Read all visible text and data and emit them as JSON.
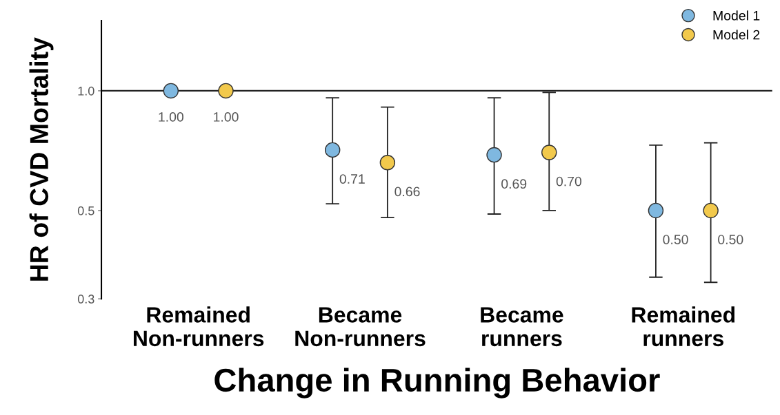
{
  "chart_data": {
    "type": "scatter",
    "categories": [
      "Remained\nNon-runners",
      "Became\nNon-runners",
      "Became\nrunners",
      "Remained\nrunners"
    ],
    "xlabel": "Change in Running Behavior",
    "ylabel": "HR of CVD Mortality",
    "series": [
      {
        "name": "Model 1",
        "color": "#7fb8e0",
        "values": [
          1.0,
          0.71,
          0.69,
          0.5
        ],
        "errors": [
          null,
          [
            0.52,
            0.96
          ],
          [
            0.49,
            0.96
          ],
          [
            0.34,
            0.73
          ]
        ],
        "value_labels": [
          "1.00",
          "0.71",
          "0.69",
          "0.50"
        ]
      },
      {
        "name": "Model 2",
        "color": "#f2c94c",
        "values": [
          1.0,
          0.66,
          0.7,
          0.5
        ],
        "errors": [
          null,
          [
            0.48,
            0.91
          ],
          [
            0.5,
            0.99
          ],
          [
            0.33,
            0.74
          ]
        ],
        "value_labels": [
          "1.00",
          "0.66",
          "0.70",
          "0.50"
        ]
      }
    ],
    "log": "y",
    "ylim": [
      0.3,
      1.5
    ],
    "yticks": [
      {
        "value": 0.3,
        "label": "0.3"
      },
      {
        "value": 0.5,
        "label": "0.5"
      },
      {
        "value": 1.0,
        "label": "1.0"
      }
    ],
    "ref_lines": [
      {
        "axis": "y",
        "value": 1.0,
        "label": null,
        "color": "#222222"
      }
    ],
    "marker": "circle",
    "legend": "top right",
    "grid": false
  }
}
